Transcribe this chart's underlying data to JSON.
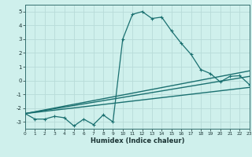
{
  "xlabel": "Humidex (Indice chaleur)",
  "background_color": "#cff0ec",
  "grid_color": "#b8dbd8",
  "line_color": "#1a7070",
  "xlim": [
    0,
    23
  ],
  "ylim": [
    -3.5,
    5.5
  ],
  "xticks": [
    0,
    1,
    2,
    3,
    4,
    5,
    6,
    7,
    8,
    9,
    10,
    11,
    12,
    13,
    14,
    15,
    16,
    17,
    18,
    19,
    20,
    21,
    22,
    23
  ],
  "yticks": [
    -3,
    -2,
    -1,
    0,
    1,
    2,
    3,
    4,
    5
  ],
  "line1_x": [
    0,
    1,
    2,
    3,
    4,
    5,
    6,
    7,
    8,
    9,
    10,
    11,
    12,
    13,
    14,
    15,
    16,
    17,
    18,
    19,
    20,
    21,
    22,
    23
  ],
  "line1_y": [
    -2.4,
    -2.8,
    -2.8,
    -2.6,
    -2.7,
    -3.3,
    -2.8,
    -3.2,
    -2.5,
    -3.0,
    3.0,
    4.8,
    5.0,
    4.5,
    4.6,
    3.6,
    2.7,
    1.9,
    0.8,
    0.5,
    -0.1,
    0.3,
    0.35,
    -0.3
  ],
  "line2_x": [
    0,
    23
  ],
  "line2_y": [
    -2.4,
    0.7
  ],
  "line3_x": [
    0,
    23
  ],
  "line3_y": [
    -2.4,
    0.3
  ],
  "line4_x": [
    0,
    23
  ],
  "line4_y": [
    -2.4,
    -0.5
  ]
}
